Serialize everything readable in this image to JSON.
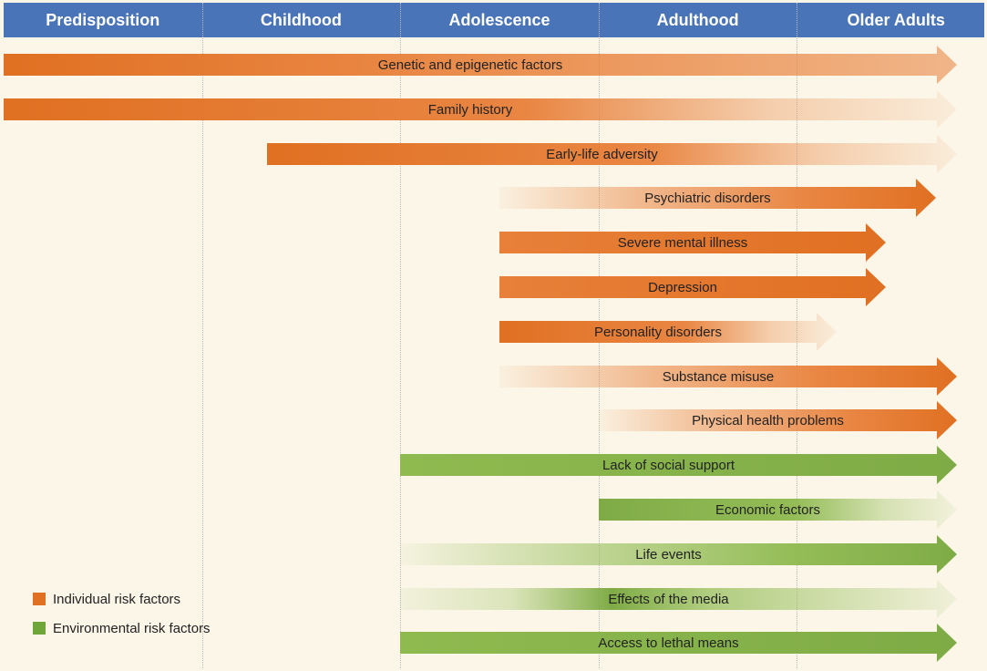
{
  "header": {
    "color": "#4a74b8",
    "phases": [
      "Predisposition",
      "Childhood",
      "Adolescence",
      "Adulthood",
      "Older Adults"
    ]
  },
  "colors": {
    "individual": "#e8803a",
    "individual_dark": "#e07022",
    "environmental": "#8fba50",
    "environmental_dark": "#7fab46"
  },
  "risk_factors": [
    {
      "label": "Genetic and epigenetic factors",
      "category": "individual",
      "start_phase": 0,
      "end_phase": 5,
      "fade": "out_light"
    },
    {
      "label": "Family history",
      "category": "individual",
      "start_phase": 0,
      "end_phase": 5,
      "fade": "out"
    },
    {
      "label": "Early-life adversity",
      "category": "individual",
      "start_phase": 1.33,
      "end_phase": 5,
      "fade": "out"
    },
    {
      "label": "Psychiatric disorders",
      "category": "individual",
      "start_phase": 2.5,
      "end_phase": 4.7,
      "fade": "in"
    },
    {
      "label": "Severe mental illness",
      "category": "individual",
      "start_phase": 2.5,
      "end_phase": 4.45,
      "fade": "none"
    },
    {
      "label": "Depression",
      "category": "individual",
      "start_phase": 2.5,
      "end_phase": 4.45,
      "fade": "none"
    },
    {
      "label": "Personality disorders",
      "category": "individual",
      "start_phase": 2.5,
      "end_phase": 4.2,
      "fade": "out"
    },
    {
      "label": "Substance misuse",
      "category": "individual",
      "start_phase": 2.5,
      "end_phase": 5,
      "fade": "in"
    },
    {
      "label": "Physical health problems",
      "category": "individual",
      "start_phase": 3,
      "end_phase": 5,
      "fade": "in"
    },
    {
      "label": "Lack of social support",
      "category": "environmental",
      "start_phase": 2,
      "end_phase": 5,
      "fade": "none"
    },
    {
      "label": "Economic factors",
      "category": "environmental",
      "start_phase": 3,
      "end_phase": 5,
      "fade": "out"
    },
    {
      "label": "Life events",
      "category": "environmental",
      "start_phase": 2,
      "end_phase": 5,
      "fade": "in"
    },
    {
      "label": "Effects of the media",
      "category": "environmental",
      "start_phase": 2,
      "end_phase": 5,
      "fade": "mid"
    },
    {
      "label": "Access to lethal means",
      "category": "environmental",
      "start_phase": 2,
      "end_phase": 5,
      "fade": "none"
    }
  ],
  "legend": {
    "individual": "Individual risk factors",
    "environmental": "Environmental risk factors"
  }
}
